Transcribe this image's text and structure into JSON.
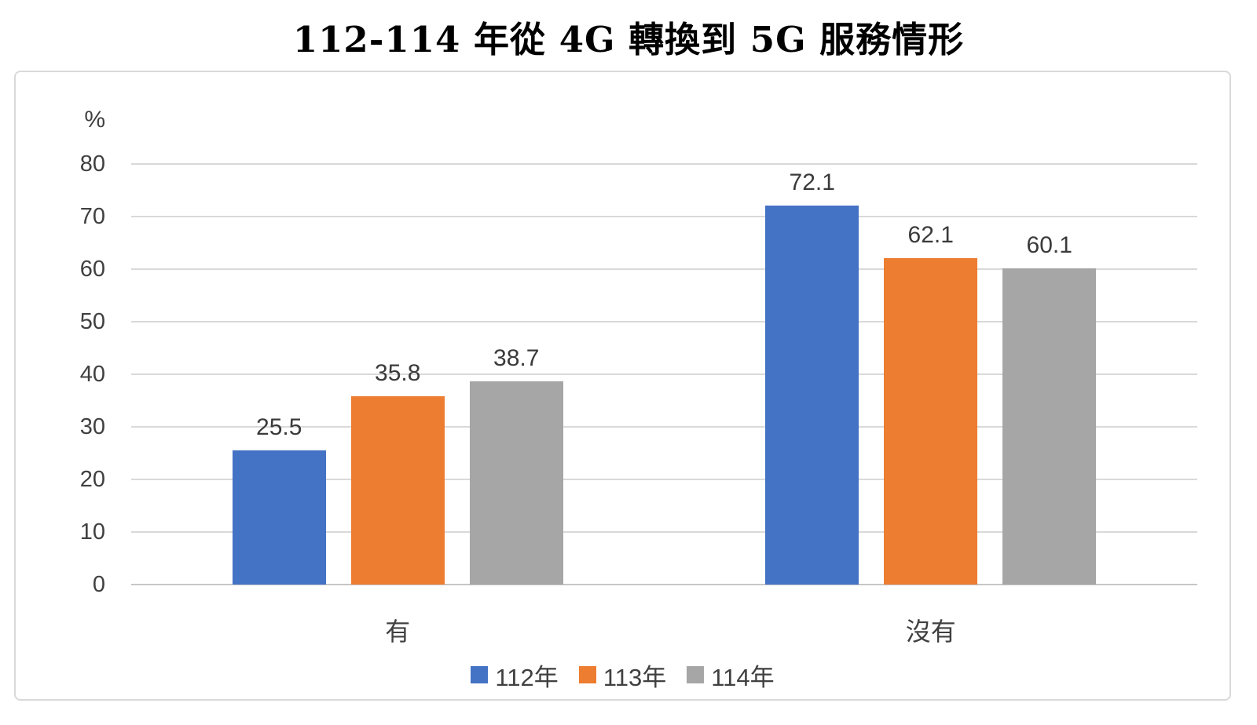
{
  "title": "112-114 年從 4G 轉換到 5G 服務情形",
  "chart_data": {
    "type": "bar",
    "title": "112-114 年從 4G 轉換到 5G 服務情形",
    "categories": [
      "有",
      "沒有"
    ],
    "series": [
      {
        "name": "112年",
        "color": "#4472C4",
        "values": [
          25.5,
          72.1
        ]
      },
      {
        "name": "113年",
        "color": "#ED7D31",
        "values": [
          35.8,
          62.1
        ]
      },
      {
        "name": "114年",
        "color": "#A6A6A6",
        "values": [
          38.7,
          60.1
        ]
      }
    ],
    "value_labels_shown": true,
    "xlabel": "",
    "ylabel": "%",
    "ylim": [
      0,
      80
    ],
    "yticks": [
      0,
      10,
      20,
      30,
      40,
      50,
      60,
      70,
      80
    ],
    "grid": true,
    "legend_position": "bottom"
  },
  "colors": {
    "gridline": "#D9D9D9",
    "axis_line": "#C6C6C6",
    "chart_border": "#D9D9D9",
    "tick_text": "#404040",
    "value_text": "#3A3A3A",
    "title_text": "#000000",
    "background": "#FFFFFF"
  }
}
